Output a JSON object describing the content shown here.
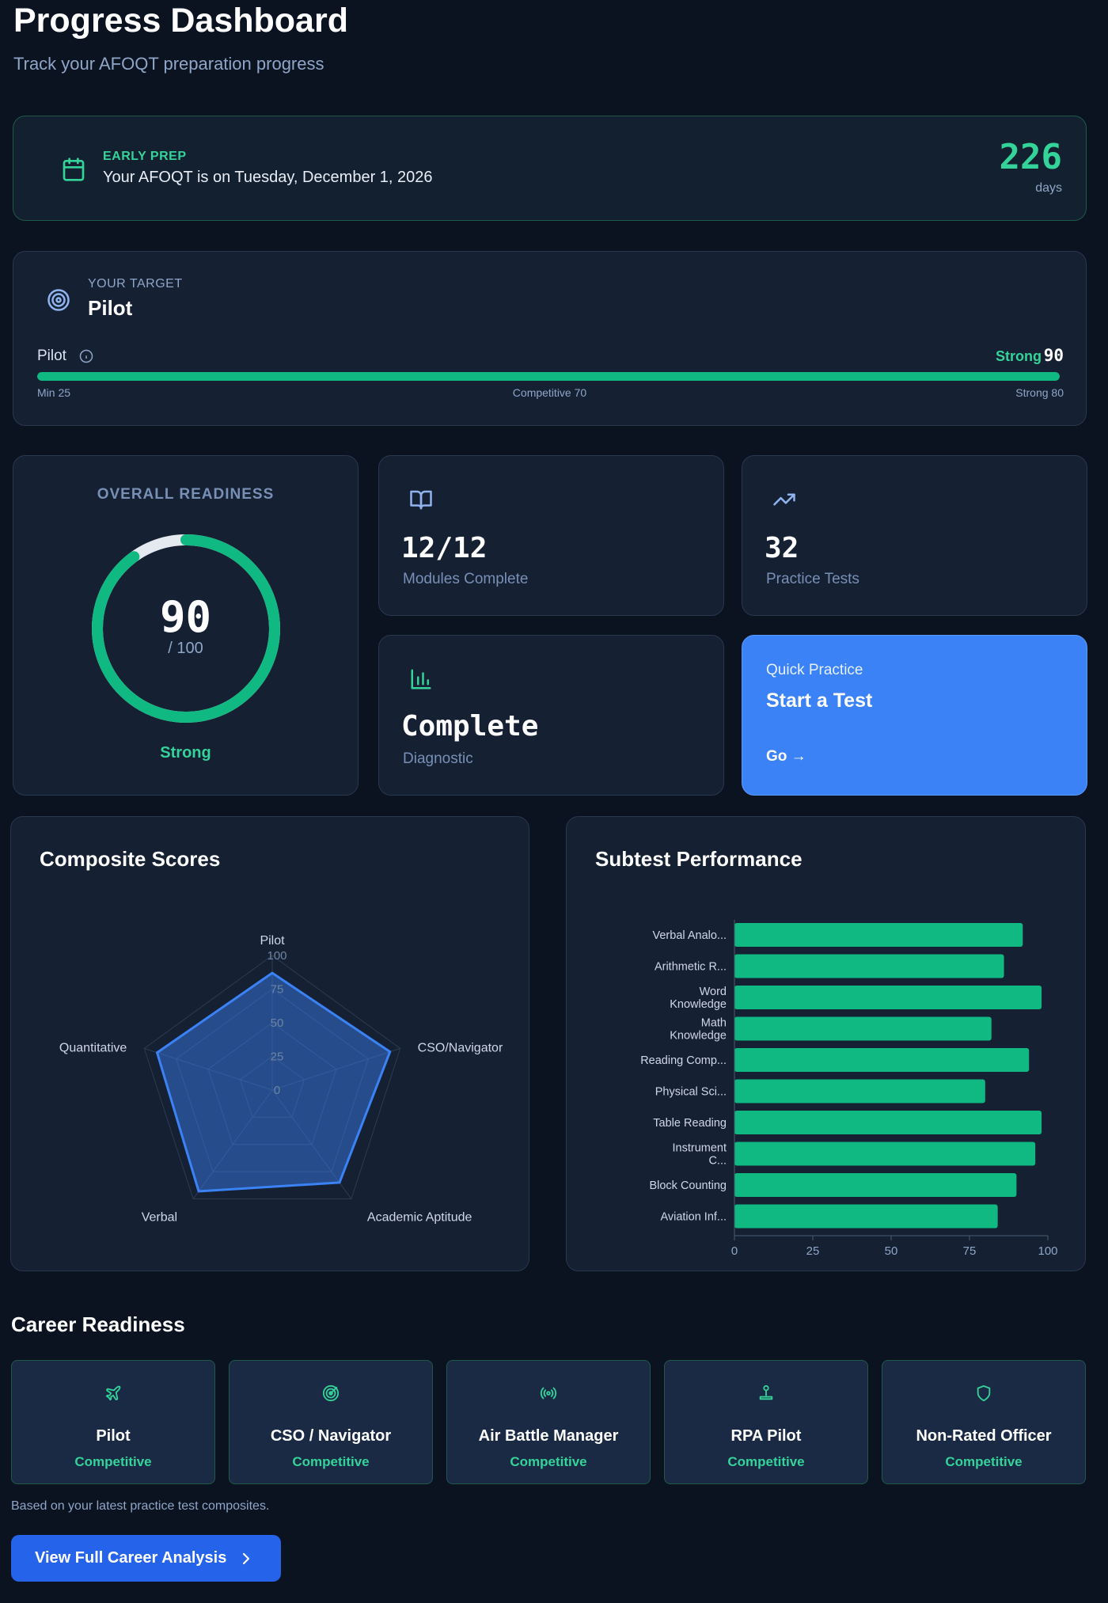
{
  "header": {
    "title": "Progress Dashboard",
    "subtitle": "Track your AFOQT preparation progress"
  },
  "countdown": {
    "tag": "EARLY PREP",
    "text": "Your AFOQT is on Tuesday, December 1, 2026",
    "days": "226",
    "unit": "days",
    "icon": "calendar-icon"
  },
  "target": {
    "tag": "YOUR TARGET",
    "name": "Pilot",
    "bar_label": "Pilot",
    "level": "Strong",
    "score": "90",
    "progress": 1.0,
    "ticks": {
      "min": "Min 25",
      "competitive": "Competitive 70",
      "strong": "Strong 80"
    },
    "icon": "target-icon"
  },
  "readiness": {
    "title": "OVERALL READINESS",
    "score": "90",
    "denominator": "/ 100",
    "level": "Strong",
    "fraction": 0.9
  },
  "stats": {
    "modules": {
      "value": "12/12",
      "label": "Modules Complete",
      "icon": "book-icon"
    },
    "tests": {
      "value": "32",
      "label": "Practice Tests",
      "icon": "trending-up-icon"
    },
    "diagnostic": {
      "value": "Complete",
      "label": "Diagnostic",
      "icon": "bar-chart-icon"
    }
  },
  "quick_practice": {
    "tag": "Quick Practice",
    "title": "Start a Test",
    "go": "Go →"
  },
  "colors": {
    "accent_green": "#10b981",
    "accent_blue": "#3b82f6",
    "background": "#0b1220",
    "card": "#152033"
  },
  "chart_data": [
    {
      "type": "radar",
      "title": "Composite Scores",
      "categories": [
        "Pilot",
        "CSO/Navigator",
        "Academic Aptitude",
        "Verbal",
        "Quantitative"
      ],
      "values": [
        87,
        92,
        85,
        93,
        90
      ],
      "ticks": [
        "0",
        "25",
        "50",
        "75",
        "100"
      ],
      "range": [
        0,
        100
      ]
    },
    {
      "type": "bar",
      "orientation": "horizontal",
      "title": "Subtest Performance",
      "categories": [
        "Verbal Analo...",
        "Arithmetic R...",
        "Word Knowledge",
        "Math Knowledge",
        "Reading Comp...",
        "Physical Sci...",
        "Table Reading",
        "Instrument C...",
        "Block Counting",
        "Aviation Inf..."
      ],
      "category_lines": [
        [
          "Verbal Analo..."
        ],
        [
          "Arithmetic R..."
        ],
        [
          "Word",
          "Knowledge"
        ],
        [
          "Math",
          "Knowledge"
        ],
        [
          "Reading Comp..."
        ],
        [
          "Physical Sci..."
        ],
        [
          "Table Reading"
        ],
        [
          "Instrument",
          "C..."
        ],
        [
          "Block Counting"
        ],
        [
          "Aviation Inf..."
        ]
      ],
      "values": [
        92,
        86,
        98,
        82,
        94,
        80,
        98,
        96,
        90,
        84
      ],
      "xticks": [
        "0",
        "25",
        "50",
        "75",
        "100"
      ],
      "xlim": [
        0,
        100
      ]
    }
  ],
  "career": {
    "title": "Career Readiness",
    "items": [
      {
        "name": "Pilot",
        "status": "Competitive",
        "icon": "plane-icon"
      },
      {
        "name": "CSO / Navigator",
        "status": "Competitive",
        "icon": "radar-icon"
      },
      {
        "name": "Air Battle Manager",
        "status": "Competitive",
        "icon": "broadcast-icon"
      },
      {
        "name": "RPA Pilot",
        "status": "Competitive",
        "icon": "joystick-icon"
      },
      {
        "name": "Non-Rated Officer",
        "status": "Competitive",
        "icon": "shield-icon"
      }
    ],
    "footnote": "Based on your latest practice test composites.",
    "cta": "View Full Career Analysis"
  }
}
